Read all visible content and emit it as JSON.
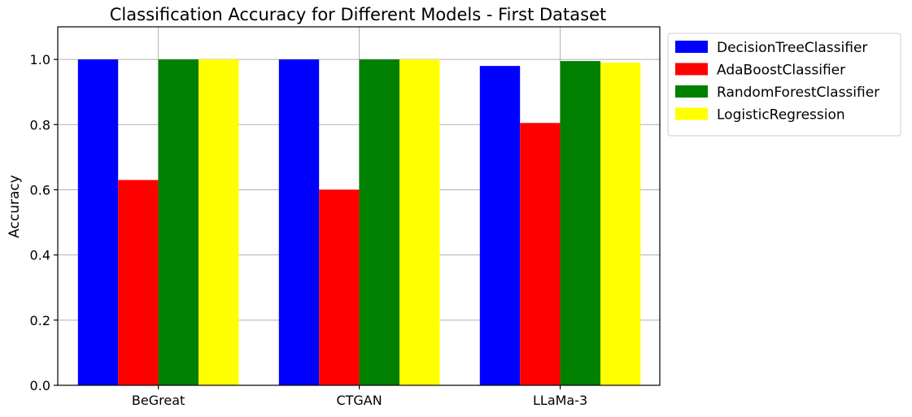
{
  "chart_data": {
    "type": "bar",
    "title": "Classification Accuracy for Different Models - First Dataset",
    "xlabel": "",
    "ylabel": "Accuracy",
    "categories": [
      "BeGreat",
      "CTGAN",
      "LLaMa-3"
    ],
    "series": [
      {
        "name": "DecisionTreeClassifier",
        "color": "#0000ff",
        "values": [
          1.0,
          1.0,
          0.98
        ]
      },
      {
        "name": "AdaBoostClassifier",
        "color": "#ff0000",
        "values": [
          0.63,
          0.6,
          0.805
        ]
      },
      {
        "name": "RandomForestClassifier",
        "color": "#008000",
        "values": [
          1.0,
          1.0,
          0.995
        ]
      },
      {
        "name": "LogisticRegression",
        "color": "#ffff00",
        "values": [
          1.0,
          1.0,
          0.99
        ]
      }
    ],
    "ylim": [
      0,
      1.1
    ],
    "yticks": [
      "0.0",
      "0.2",
      "0.4",
      "0.6",
      "0.8",
      "1.0"
    ],
    "grid": true,
    "legend_position": "outside-top-right"
  }
}
